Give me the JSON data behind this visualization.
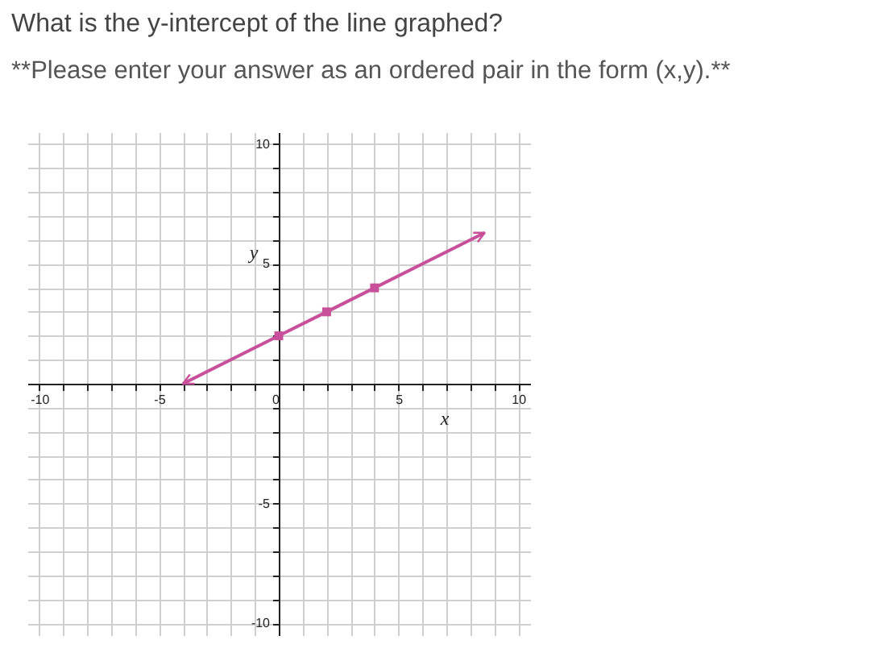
{
  "chart_data": {
    "type": "line",
    "title": "What is the y-intercept of the line graphed?",
    "subtitle": "**Please enter your answer as an ordered pair in the form (x,y).**",
    "xlabel": "x",
    "ylabel": "y",
    "series": [
      {
        "color": "#c8509b",
        "marker": "none",
        "x": [
          -4,
          0,
          2,
          4,
          8.6
        ],
        "values": [
          0,
          2,
          3,
          4,
          6.3
        ]
      },
      {
        "type": "scatter",
        "color": "#c8509b",
        "marker": "square",
        "x": [
          0,
          2,
          4
        ],
        "values": [
          2,
          3,
          4
        ]
      }
    ],
    "xlim": [
      -10.5,
      10.5
    ],
    "ylim": [
      -10.5,
      10.5
    ],
    "xticks": [
      -10,
      {
        "value": -9,
        "label": null
      },
      {
        "value": -8,
        "label": null
      },
      {
        "value": -7,
        "label": null
      },
      {
        "value": -6,
        "label": null
      },
      -5,
      {
        "value": -4,
        "label": null
      },
      {
        "value": -3,
        "label": null
      },
      {
        "value": -2,
        "label": null
      },
      {
        "value": -1,
        "label": null
      },
      0,
      {
        "value": 1,
        "label": null
      },
      {
        "value": 2,
        "label": null
      },
      {
        "value": 3,
        "label": null
      },
      {
        "value": 4,
        "label": null
      },
      5,
      {
        "value": 6,
        "label": null
      },
      {
        "value": 7,
        "label": null
      },
      {
        "value": 8,
        "label": null
      },
      {
        "value": 9,
        "label": null
      },
      10
    ],
    "yticks": [
      -10,
      {
        "value": -9,
        "label": null
      },
      {
        "value": -8,
        "label": null
      },
      {
        "value": -7,
        "label": null
      },
      {
        "value": -6,
        "label": null
      },
      -5,
      {
        "value": -4,
        "label": null
      },
      {
        "value": -3,
        "label": null
      },
      {
        "value": -2,
        "label": null
      },
      {
        "value": -1,
        "label": null
      },
      {
        "value": 0,
        "label": null
      },
      {
        "value": 1,
        "label": null
      },
      {
        "value": 2,
        "label": null
      },
      {
        "value": 3,
        "label": null
      },
      {
        "value": 4,
        "label": null
      },
      5,
      {
        "value": 6,
        "label": null
      },
      {
        "value": 7,
        "label": null
      },
      {
        "value": 8,
        "label": null
      },
      {
        "value": 9,
        "label": null
      },
      10
    ],
    "grid": true
  }
}
